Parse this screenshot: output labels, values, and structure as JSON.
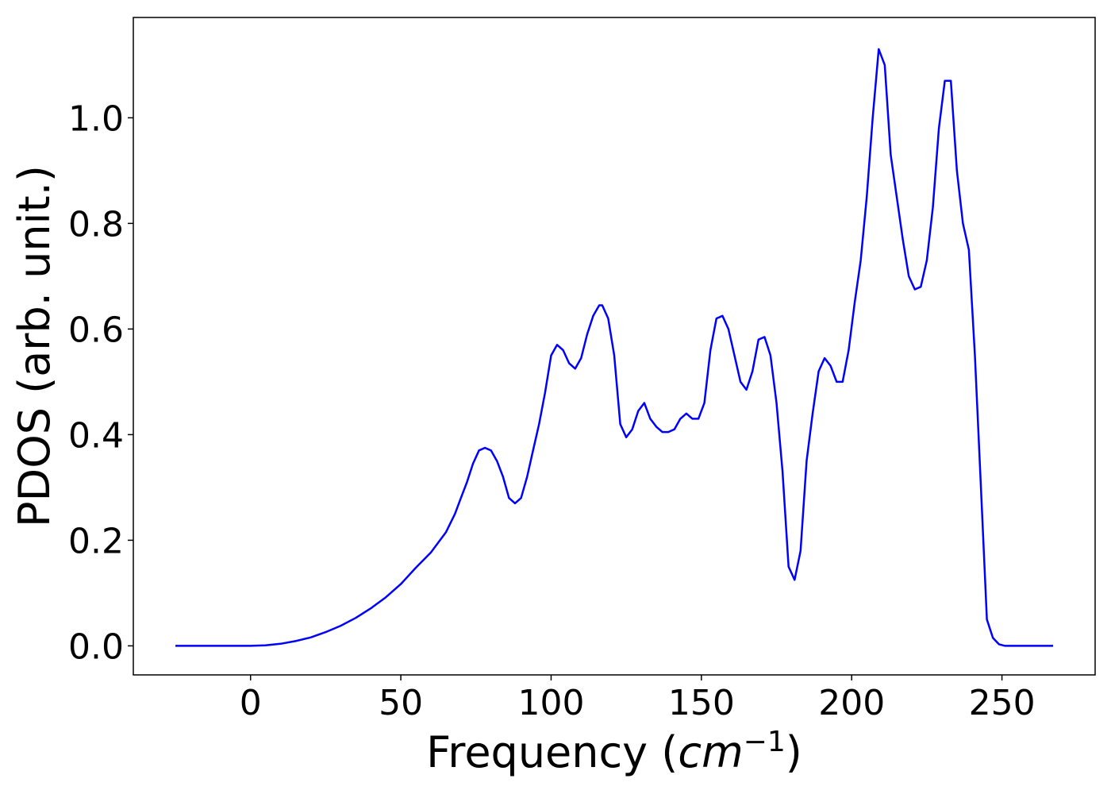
{
  "chart_data": {
    "type": "line",
    "title": "",
    "xlabel": "Frequency",
    "xlabel_unit_base": "cm",
    "xlabel_unit_exponent": "−1",
    "ylabel": "PDOS (arb. unit.)",
    "xlim": [
      -39,
      281
    ],
    "ylim": [
      -0.055,
      1.19
    ],
    "xticks": [
      0,
      50,
      100,
      150,
      200,
      250
    ],
    "xtick_labels": [
      "0",
      "50",
      "100",
      "150",
      "200",
      "250"
    ],
    "yticks": [
      0.0,
      0.2,
      0.4,
      0.6,
      0.8,
      1.0
    ],
    "ytick_labels": [
      "0.0",
      "0.2",
      "0.4",
      "0.6",
      "0.8",
      "1.0"
    ],
    "grid": false,
    "line_color": "#0000ff",
    "series": [
      {
        "x": [
          -25,
          -15,
          -5,
          0,
          5,
          10,
          15,
          20,
          25,
          30,
          35,
          40,
          45,
          50,
          55,
          60,
          65,
          68,
          70,
          72,
          74,
          76,
          78,
          80,
          82,
          84,
          86,
          88,
          90,
          92,
          94,
          96,
          98,
          100,
          102,
          104,
          106,
          108,
          110,
          112,
          114,
          116,
          117,
          119,
          121,
          123,
          125,
          127,
          129,
          131,
          133,
          135,
          137,
          139,
          141,
          143,
          145,
          147,
          149,
          151,
          153,
          155,
          157,
          159,
          161,
          163,
          165,
          167,
          169,
          171,
          173,
          175,
          177,
          179,
          181,
          183,
          185,
          187,
          189,
          191,
          193,
          195,
          197,
          199,
          201,
          203,
          205,
          207,
          209,
          211,
          213,
          215,
          217,
          219,
          221,
          223,
          225,
          227,
          229,
          231,
          233,
          235,
          237,
          239,
          241,
          243,
          245,
          247,
          249,
          251,
          255,
          260,
          267
        ],
        "y": [
          0.0,
          0.0,
          0.0,
          0.0,
          0.001,
          0.004,
          0.009,
          0.016,
          0.026,
          0.038,
          0.053,
          0.071,
          0.092,
          0.117,
          0.148,
          0.177,
          0.215,
          0.25,
          0.28,
          0.31,
          0.345,
          0.37,
          0.375,
          0.37,
          0.35,
          0.32,
          0.28,
          0.27,
          0.28,
          0.32,
          0.37,
          0.42,
          0.48,
          0.55,
          0.57,
          0.56,
          0.535,
          0.525,
          0.545,
          0.59,
          0.625,
          0.645,
          0.645,
          0.62,
          0.55,
          0.42,
          0.395,
          0.41,
          0.445,
          0.46,
          0.43,
          0.415,
          0.405,
          0.405,
          0.41,
          0.43,
          0.44,
          0.43,
          0.43,
          0.46,
          0.56,
          0.62,
          0.625,
          0.6,
          0.55,
          0.5,
          0.485,
          0.52,
          0.58,
          0.585,
          0.55,
          0.46,
          0.33,
          0.15,
          0.125,
          0.18,
          0.35,
          0.44,
          0.52,
          0.545,
          0.53,
          0.5,
          0.5,
          0.56,
          0.65,
          0.73,
          0.85,
          1.0,
          1.13,
          1.1,
          0.93,
          0.85,
          0.77,
          0.7,
          0.675,
          0.68,
          0.73,
          0.83,
          0.98,
          1.07,
          1.07,
          0.9,
          0.8,
          0.75,
          0.55,
          0.3,
          0.05,
          0.015,
          0.003,
          0.0,
          0.0,
          0.0,
          0.0
        ]
      }
    ]
  }
}
